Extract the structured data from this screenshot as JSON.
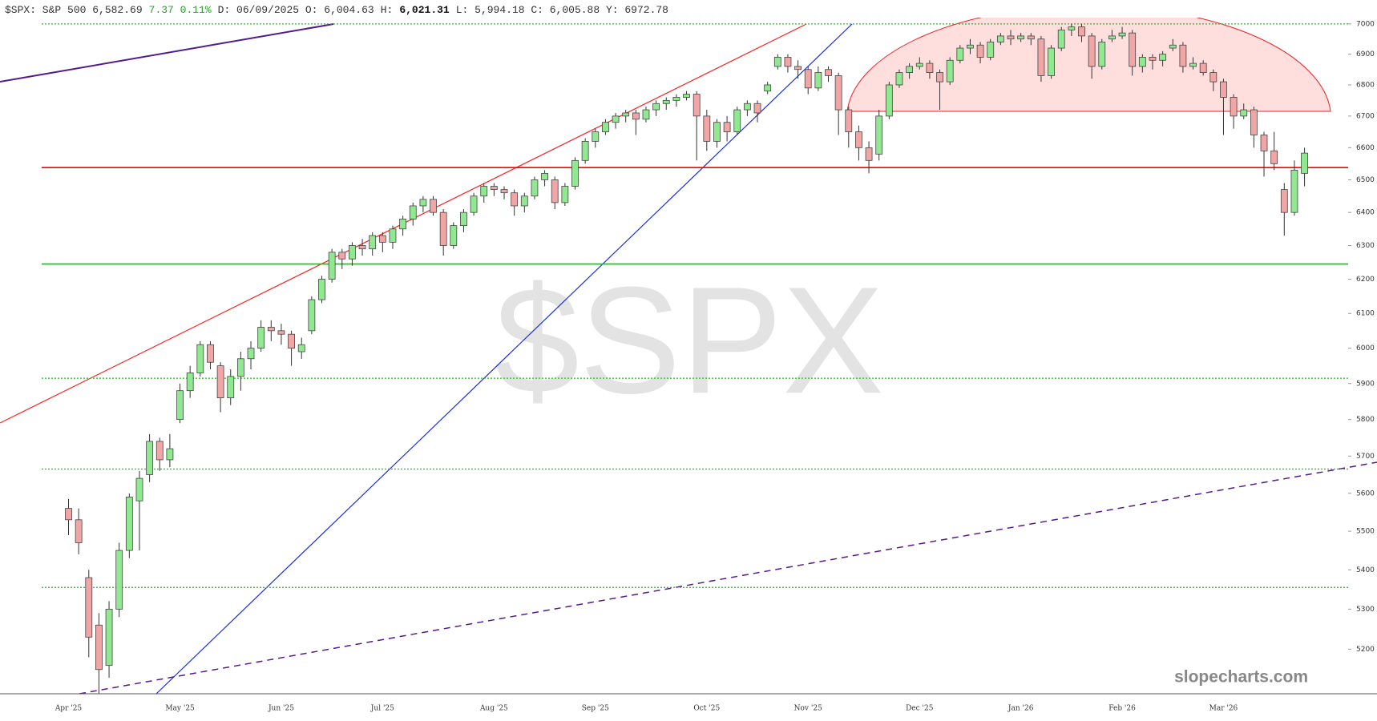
{
  "chart_data": {
    "type": "candlestick",
    "header": [
      {
        "text": "$SPX: S&P 500 6,582.69",
        "color": "#333333"
      },
      {
        "text": "7.37 0.11%",
        "color": "#2a9d2a"
      },
      {
        "text": "D: 06/09/2025 O: 6,004.63",
        "color": "#333333"
      },
      {
        "text": "H:",
        "color": "#333333"
      },
      {
        "text": "6,021.31",
        "color": "#111111",
        "weight": "bold"
      },
      {
        "text": "L: 5,994.18 C: 6,005.88 Y:  6972.78",
        "color": "#333333"
      }
    ],
    "watermark": "$SPX",
    "brand": "slopecharts.com",
    "log_scale": true,
    "grid": false,
    "up_color": "#90e890",
    "down_color": "#f2a5a5",
    "ylim": [
      5091,
      7021
    ],
    "yticks": [
      5200,
      5300,
      5400,
      5500,
      5600,
      5700,
      5800,
      5900,
      6000,
      6100,
      6200,
      6300,
      6400,
      6500,
      6600,
      6700,
      6800,
      6900,
      7000
    ],
    "levels": [
      {
        "value": 7000,
        "color": "#22bb22",
        "style": "dotted"
      },
      {
        "value": 6538,
        "color": "#ff0000",
        "style": "solid"
      },
      {
        "value": 6245,
        "color": "#00cc00",
        "style": "solid"
      },
      {
        "value": 5915,
        "color": "#22bb22",
        "style": "dotted"
      },
      {
        "value": 5665,
        "color": "#22bb22",
        "style": "dotted"
      },
      {
        "value": 5355,
        "color": "#22bb22",
        "style": "dotted"
      }
    ],
    "categories": [
      "Apr '25",
      null,
      null,
      null,
      null,
      null,
      null,
      null,
      null,
      null,
      null,
      "May '25",
      null,
      null,
      null,
      null,
      null,
      null,
      null,
      null,
      null,
      "Jun '25",
      null,
      null,
      null,
      null,
      null,
      null,
      null,
      null,
      null,
      "Jul '25",
      null,
      null,
      null,
      null,
      null,
      null,
      null,
      null,
      null,
      null,
      "Aug '25",
      null,
      null,
      null,
      null,
      null,
      null,
      null,
      null,
      null,
      "Sep '25",
      null,
      null,
      null,
      null,
      null,
      null,
      null,
      null,
      null,
      null,
      "Oct '25",
      null,
      null,
      null,
      null,
      null,
      null,
      null,
      null,
      null,
      "Nov '25",
      null,
      null,
      null,
      null,
      null,
      null,
      null,
      null,
      null,
      null,
      "Dec '25",
      null,
      null,
      null,
      null,
      null,
      null,
      null,
      null,
      null,
      "Jan '26",
      null,
      null,
      null,
      null,
      null,
      null,
      null,
      null,
      null,
      "Feb '26",
      null,
      null,
      null,
      null,
      null,
      null,
      null,
      null,
      null,
      "Mar '26",
      null,
      null,
      null,
      null,
      null,
      null,
      null,
      null
    ],
    "ohlc": [
      [
        5560,
        5585,
        5490,
        5530
      ],
      [
        5530,
        5560,
        5440,
        5470
      ],
      [
        5380,
        5400,
        5180,
        5230
      ],
      [
        5260,
        5290,
        5090,
        5150
      ],
      [
        5160,
        5320,
        5130,
        5300
      ],
      [
        5300,
        5470,
        5280,
        5450
      ],
      [
        5450,
        5600,
        5430,
        5590
      ],
      [
        5580,
        5660,
        5450,
        5640
      ],
      [
        5650,
        5760,
        5630,
        5740
      ],
      [
        5740,
        5750,
        5660,
        5690
      ],
      [
        5690,
        5760,
        5670,
        5720
      ],
      [
        5800,
        5900,
        5790,
        5880
      ],
      [
        5880,
        5950,
        5860,
        5930
      ],
      [
        5930,
        6020,
        5920,
        6010
      ],
      [
        6010,
        6020,
        5940,
        5960
      ],
      [
        5950,
        5960,
        5820,
        5860
      ],
      [
        5860,
        5940,
        5840,
        5920
      ],
      [
        5920,
        5990,
        5880,
        5970
      ],
      [
        5970,
        6020,
        5940,
        6000
      ],
      [
        6000,
        6080,
        5990,
        6060
      ],
      [
        6060,
        6080,
        6020,
        6050
      ],
      [
        6050,
        6070,
        6010,
        6040
      ],
      [
        6040,
        6050,
        5950,
        6000
      ],
      [
        5990,
        6030,
        5970,
        6010
      ],
      [
        6050,
        6150,
        6040,
        6140
      ],
      [
        6140,
        6210,
        6130,
        6200
      ],
      [
        6200,
        6290,
        6190,
        6280
      ],
      [
        6280,
        6290,
        6230,
        6260
      ],
      [
        6260,
        6310,
        6240,
        6300
      ],
      [
        6300,
        6320,
        6270,
        6290
      ],
      [
        6290,
        6340,
        6270,
        6330
      ],
      [
        6330,
        6340,
        6280,
        6310
      ],
      [
        6310,
        6360,
        6290,
        6350
      ],
      [
        6350,
        6390,
        6330,
        6380
      ],
      [
        6380,
        6430,
        6360,
        6420
      ],
      [
        6420,
        6450,
        6400,
        6440
      ],
      [
        6440,
        6450,
        6390,
        6400
      ],
      [
        6400,
        6410,
        6270,
        6300
      ],
      [
        6300,
        6370,
        6290,
        6360
      ],
      [
        6360,
        6410,
        6340,
        6400
      ],
      [
        6400,
        6460,
        6390,
        6450
      ],
      [
        6450,
        6490,
        6430,
        6480
      ],
      [
        6480,
        6490,
        6450,
        6470
      ],
      [
        6470,
        6480,
        6440,
        6460
      ],
      [
        6460,
        6470,
        6390,
        6420
      ],
      [
        6420,
        6460,
        6400,
        6450
      ],
      [
        6450,
        6510,
        6440,
        6500
      ],
      [
        6500,
        6530,
        6480,
        6520
      ],
      [
        6500,
        6510,
        6410,
        6430
      ],
      [
        6430,
        6490,
        6420,
        6480
      ],
      [
        6480,
        6570,
        6470,
        6560
      ],
      [
        6560,
        6630,
        6550,
        6620
      ],
      [
        6620,
        6660,
        6600,
        6650
      ],
      [
        6650,
        6690,
        6640,
        6680
      ],
      [
        6680,
        6710,
        6660,
        6700
      ],
      [
        6700,
        6720,
        6680,
        6710
      ],
      [
        6710,
        6720,
        6640,
        6690
      ],
      [
        6690,
        6730,
        6680,
        6720
      ],
      [
        6720,
        6750,
        6700,
        6740
      ],
      [
        6740,
        6760,
        6720,
        6750
      ],
      [
        6750,
        6770,
        6730,
        6760
      ],
      [
        6760,
        6780,
        6750,
        6770
      ],
      [
        6770,
        6780,
        6560,
        6700
      ],
      [
        6700,
        6720,
        6590,
        6620
      ],
      [
        6620,
        6690,
        6600,
        6680
      ],
      [
        6680,
        6700,
        6620,
        6650
      ],
      [
        6650,
        6730,
        6640,
        6720
      ],
      [
        6720,
        6750,
        6700,
        6740
      ],
      [
        6740,
        6750,
        6680,
        6710
      ],
      [
        6780,
        6810,
        6770,
        6800
      ],
      [
        6860,
        6900,
        6850,
        6890
      ],
      [
        6890,
        6900,
        6840,
        6860
      ],
      [
        6860,
        6880,
        6820,
        6850
      ],
      [
        6850,
        6860,
        6770,
        6790
      ],
      [
        6790,
        6860,
        6780,
        6840
      ],
      [
        6850,
        6860,
        6810,
        6830
      ],
      [
        6830,
        6840,
        6640,
        6720
      ],
      [
        6720,
        6730,
        6600,
        6650
      ],
      [
        6650,
        6670,
        6560,
        6600
      ],
      [
        6600,
        6620,
        6520,
        6560
      ],
      [
        6580,
        6720,
        6560,
        6700
      ],
      [
        6700,
        6810,
        6690,
        6800
      ],
      [
        6800,
        6850,
        6790,
        6840
      ],
      [
        6840,
        6870,
        6820,
        6860
      ],
      [
        6860,
        6890,
        6850,
        6870
      ],
      [
        6870,
        6880,
        6820,
        6840
      ],
      [
        6840,
        6850,
        6720,
        6810
      ],
      [
        6810,
        6890,
        6800,
        6880
      ],
      [
        6880,
        6930,
        6870,
        6920
      ],
      [
        6920,
        6950,
        6900,
        6930
      ],
      [
        6930,
        6940,
        6870,
        6890
      ],
      [
        6890,
        6950,
        6880,
        6940
      ],
      [
        6940,
        6970,
        6930,
        6960
      ],
      [
        6960,
        6980,
        6930,
        6950
      ],
      [
        6950,
        6970,
        6940,
        6960
      ],
      [
        6960,
        6970,
        6930,
        6950
      ],
      [
        6950,
        6960,
        6810,
        6830
      ],
      [
        6830,
        6930,
        6820,
        6920
      ],
      [
        6920,
        6990,
        6910,
        6980
      ],
      [
        6980,
        7000,
        6960,
        6990
      ],
      [
        6990,
        7000,
        6940,
        6960
      ],
      [
        6960,
        6970,
        6820,
        6860
      ],
      [
        6860,
        6950,
        6850,
        6940
      ],
      [
        6950,
        6980,
        6940,
        6960
      ],
      [
        6960,
        6990,
        6950,
        6970
      ],
      [
        6970,
        6980,
        6830,
        6860
      ],
      [
        6860,
        6900,
        6840,
        6890
      ],
      [
        6890,
        6900,
        6850,
        6880
      ],
      [
        6880,
        6910,
        6860,
        6900
      ],
      [
        6920,
        6950,
        6910,
        6930
      ],
      [
        6930,
        6940,
        6840,
        6860
      ],
      [
        6860,
        6890,
        6850,
        6870
      ],
      [
        6870,
        6880,
        6830,
        6840
      ],
      [
        6840,
        6850,
        6780,
        6810
      ],
      [
        6810,
        6820,
        6640,
        6760
      ],
      [
        6760,
        6770,
        6660,
        6700
      ],
      [
        6700,
        6740,
        6690,
        6720
      ],
      [
        6720,
        6730,
        6600,
        6640
      ],
      [
        6640,
        6650,
        6510,
        6590
      ],
      [
        6590,
        6650,
        6530,
        6550
      ],
      [
        6470,
        6490,
        6330,
        6400
      ],
      [
        6400,
        6560,
        6390,
        6530
      ],
      [
        6520,
        6600,
        6480,
        6583
      ]
    ]
  }
}
